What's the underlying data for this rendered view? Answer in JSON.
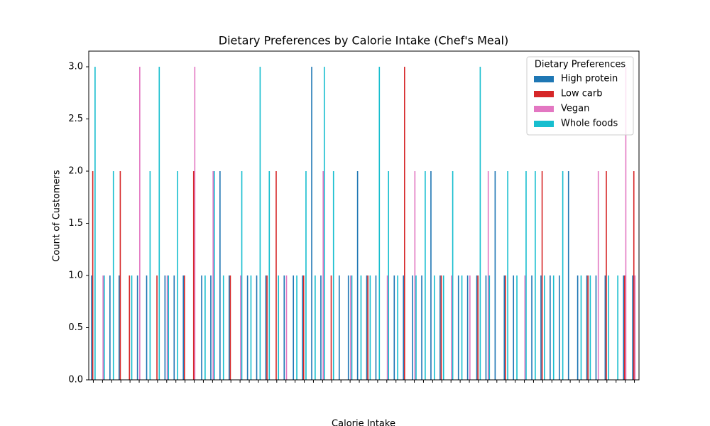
{
  "chart_data": {
    "type": "bar",
    "title": "Dietary Preferences by Calorie Intake (Chef's Meal)",
    "xlabel": "Calorie Intake",
    "ylabel": "Count of Customers",
    "categories": [
      null,
      null,
      null,
      null,
      null,
      null,
      null,
      null,
      null,
      null,
      null,
      null,
      null,
      null,
      null,
      null,
      null,
      null,
      null,
      null,
      null,
      null,
      null,
      null,
      null,
      null,
      null,
      null,
      null,
      null,
      null,
      null,
      null,
      null,
      null,
      null,
      null,
      null,
      null,
      null,
      null,
      null,
      null,
      null,
      null,
      null,
      null,
      null,
      null,
      null,
      null,
      null,
      null,
      null,
      null,
      null,
      null,
      null,
      null,
      null
    ],
    "series": [
      {
        "name": "High protein",
        "color": "#1f77b4",
        "values": [
          1,
          0,
          1,
          1,
          0,
          1,
          1,
          0,
          1,
          1,
          1,
          0,
          1,
          1,
          2,
          1,
          0,
          1,
          1,
          1,
          0,
          1,
          1,
          1,
          3,
          1,
          0,
          1,
          1,
          2,
          1,
          1,
          0,
          1,
          1,
          1,
          1,
          2,
          1,
          0,
          1,
          1,
          1,
          1,
          2,
          1,
          1,
          0,
          1,
          1,
          1,
          1,
          2,
          1,
          1,
          1,
          1,
          0,
          1,
          1
        ]
      },
      {
        "name": "Low carb",
        "color": "#d62728",
        "values": [
          2,
          0,
          0,
          2,
          1,
          0,
          0,
          1,
          0,
          0,
          1,
          2,
          0,
          0,
          0,
          1,
          0,
          0,
          0,
          1,
          2,
          0,
          0,
          1,
          0,
          0,
          1,
          0,
          0,
          0,
          1,
          0,
          0,
          0,
          3,
          0,
          0,
          0,
          1,
          0,
          0,
          0,
          1,
          0,
          0,
          1,
          0,
          0,
          0,
          2,
          0,
          0,
          0,
          0,
          1,
          0,
          2,
          0,
          1,
          2
        ]
      },
      {
        "name": "Vegan",
        "color": "#e377c2",
        "values": [
          0,
          1,
          0,
          0,
          0,
          3,
          0,
          0,
          1,
          0,
          0,
          3,
          0,
          2,
          0,
          0,
          1,
          0,
          0,
          0,
          0,
          1,
          0,
          0,
          0,
          2,
          0,
          0,
          1,
          0,
          0,
          0,
          1,
          0,
          0,
          2,
          0,
          0,
          0,
          1,
          0,
          1,
          0,
          2,
          0,
          0,
          0,
          1,
          0,
          0,
          0,
          0,
          0,
          0,
          0,
          2,
          0,
          0,
          3,
          1
        ]
      },
      {
        "name": "Whole foods",
        "color": "#17becf",
        "values": [
          3,
          1,
          2,
          0,
          1,
          0,
          2,
          3,
          1,
          2,
          0,
          0,
          1,
          2,
          1,
          0,
          2,
          1,
          3,
          2,
          1,
          0,
          1,
          2,
          1,
          3,
          2,
          0,
          1,
          1,
          1,
          3,
          2,
          1,
          0,
          1,
          2,
          1,
          1,
          2,
          1,
          0,
          3,
          1,
          0,
          2,
          1,
          2,
          2,
          1,
          1,
          2,
          0,
          1,
          1,
          0,
          1,
          1,
          0,
          0
        ]
      }
    ],
    "ylim": [
      0,
      3.15
    ],
    "yticks": [
      {
        "value": 0,
        "label": "0.0"
      },
      {
        "value": 0.5,
        "label": "0.5"
      },
      {
        "value": 1,
        "label": "1.0"
      },
      {
        "value": 1.5,
        "label": "1.5"
      },
      {
        "value": 2,
        "label": "2.0"
      },
      {
        "value": 2.5,
        "label": "2.5"
      },
      {
        "value": 3,
        "label": "3.0"
      }
    ],
    "legend_title": "Dietary Preferences",
    "legend_loc": "upper right",
    "grid": false
  }
}
